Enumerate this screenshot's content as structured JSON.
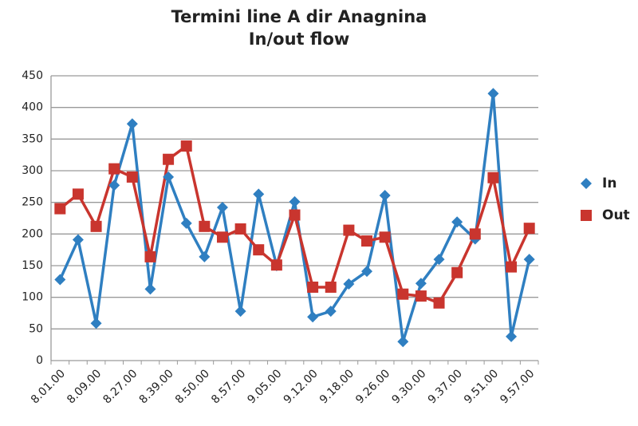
{
  "chart_data": {
    "type": "line",
    "title": [
      "Termini line A dir Anagnina",
      "In/out flow"
    ],
    "categories": [
      "8.01.00",
      null,
      "8.09.00",
      null,
      "8.27.00",
      null,
      "8.39.00",
      null,
      "8.50.00",
      null,
      "8.57.00",
      null,
      "9.05.00",
      null,
      "9.12.00",
      null,
      "9.18.00",
      null,
      "9.26.00",
      null,
      "9.30.00",
      null,
      "9.37.00",
      null,
      "9.51.00",
      null,
      "9.57.00"
    ],
    "series": [
      {
        "name": "In",
        "color": "#2f7fc1",
        "marker": "diamond",
        "values": [
          128,
          191,
          59,
          277,
          374,
          113,
          290,
          217,
          164,
          242,
          78,
          263,
          150,
          251,
          69,
          78,
          121,
          141,
          261,
          30,
          122,
          160,
          219,
          192,
          422,
          38,
          160
        ]
      },
      {
        "name": "Out",
        "color": "#c9352e",
        "marker": "square",
        "values": [
          240,
          263,
          212,
          303,
          290,
          164,
          318,
          339,
          212,
          195,
          208,
          175,
          151,
          230,
          116,
          116,
          206,
          189,
          195,
          105,
          102,
          91,
          139,
          200,
          289,
          148,
          209
        ]
      }
    ],
    "ylim": [
      0,
      450
    ],
    "yticks": [
      0,
      50,
      100,
      150,
      200,
      250,
      300,
      350,
      400,
      450
    ],
    "grid": true,
    "legend": "right"
  }
}
